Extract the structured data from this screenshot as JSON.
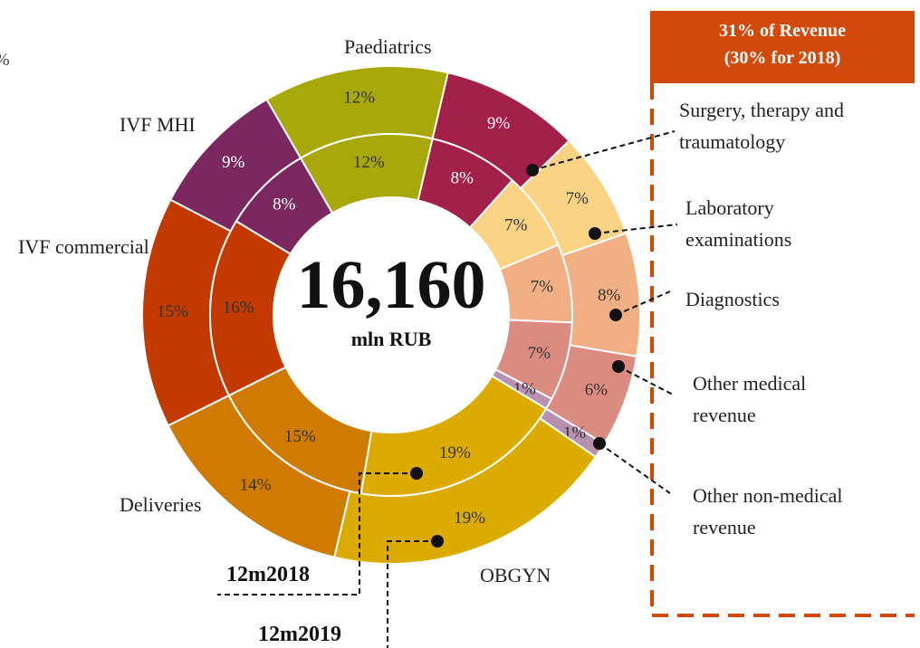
{
  "chart_data": {
    "type": "donut",
    "cropped_text": "%",
    "total": {
      "value": 16160,
      "label": "16,160"
    },
    "unit": "mln RUB",
    "categories": [
      "Paediatrics",
      "Surgery, therapy and traumatology",
      "Laboratory examinations",
      "Diagnostics",
      "Other medical revenue",
      "Other non-medical revenue",
      "OBGYN",
      "Deliveries",
      "IVF commercial",
      "IVF MHI"
    ],
    "colors": [
      "#a8a80a",
      "#a3204a",
      "#fad384",
      "#f0b083",
      "#dc8b80",
      "#b891b0",
      "#dcab00",
      "#cf7a00",
      "#c23a00",
      "#7b2760"
    ],
    "series": [
      {
        "name": "12m2019",
        "ring": "outer",
        "values": [
          12,
          9,
          7,
          8,
          6,
          1,
          19,
          14,
          15,
          9
        ],
        "value_labels": [
          "12%",
          "9%",
          "7%",
          "8%",
          "6%",
          "1%",
          "19%",
          "14%",
          "15%",
          "9%"
        ]
      },
      {
        "name": "12m2018",
        "ring": "inner",
        "values": [
          12,
          8,
          7,
          7,
          7,
          1,
          19,
          15,
          16,
          8
        ],
        "value_labels": [
          "12%",
          "8%",
          "7%",
          "7%",
          "7%",
          "1%",
          "19%",
          "15%",
          "16%",
          "8%"
        ]
      }
    ],
    "callout": {
      "title": "31% of Revenue",
      "subtitle": "(30% for 2018)"
    }
  }
}
